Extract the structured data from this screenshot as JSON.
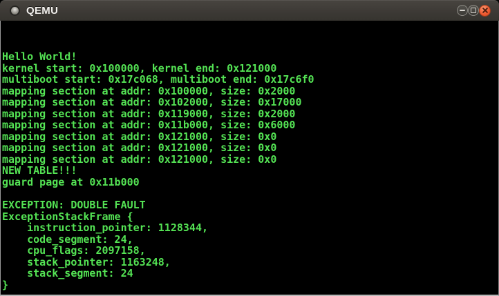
{
  "window": {
    "title": "QEMU",
    "controls": [
      {
        "name": "minimize",
        "label": "Minimize"
      },
      {
        "name": "maximize",
        "label": "Maximize"
      },
      {
        "name": "close",
        "label": "Close"
      }
    ]
  },
  "terminal": {
    "colors": {
      "foreground": "#54e354",
      "background": "#000000",
      "close_button": "#ee5b32",
      "titlebar": "#3d3a36"
    },
    "lines": [
      "Hello World!",
      "kernel start: 0x100000, kernel end: 0x121000",
      "multiboot start: 0x17c068, multiboot end: 0x17c6f0",
      "mapping section at addr: 0x100000, size: 0x2000",
      "mapping section at addr: 0x102000, size: 0x17000",
      "mapping section at addr: 0x119000, size: 0x2000",
      "mapping section at addr: 0x11b000, size: 0x6000",
      "mapping section at addr: 0x121000, size: 0x0",
      "mapping section at addr: 0x121000, size: 0x0",
      "mapping section at addr: 0x121000, size: 0x0",
      "NEW TABLE!!!",
      "guard page at 0x11b000",
      "",
      "EXCEPTION: DOUBLE FAULT",
      "ExceptionStackFrame {",
      "    instruction_pointer: 1128344,",
      "    code_segment: 24,",
      "    cpu_flags: 2097158,",
      "    stack_pointer: 1163248,",
      "    stack_segment: 24",
      "}"
    ]
  }
}
